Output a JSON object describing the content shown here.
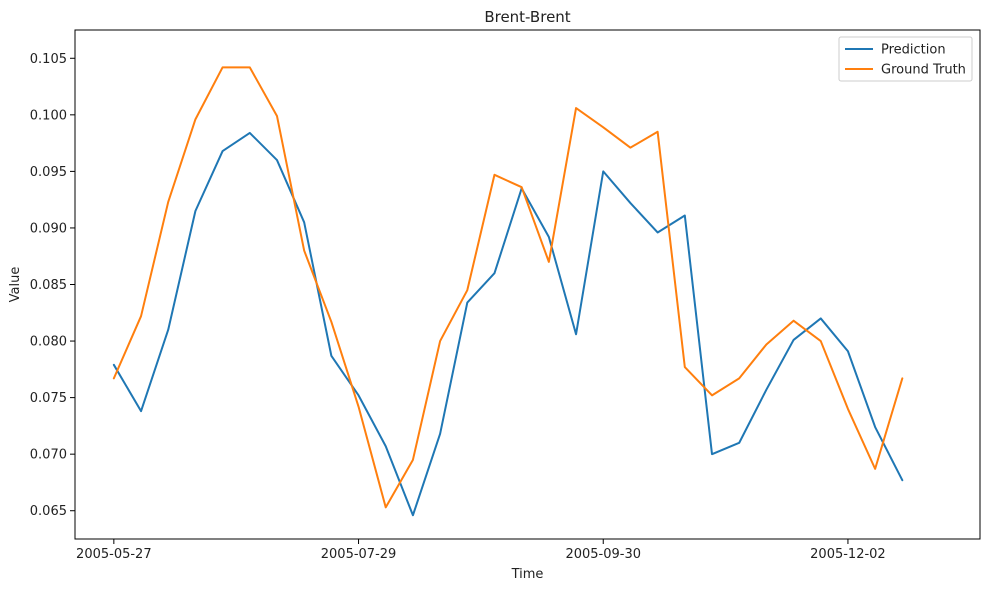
{
  "chart_data": {
    "type": "line",
    "title": "Brent-Brent",
    "xlabel": "Time",
    "ylabel": "Value",
    "x_tick_labels": [
      "2005-05-27",
      "2005-07-29",
      "2005-09-30",
      "2005-12-02"
    ],
    "x_ticks": [
      "2005-05-27",
      "2005-07-29",
      "2005-09-30",
      "2005-12-02"
    ],
    "y_ticks": [
      0.065,
      0.07,
      0.075,
      0.08,
      0.085,
      0.09,
      0.095,
      0.1,
      0.105
    ],
    "y_tick_labels": [
      "0.065",
      "0.070",
      "0.075",
      "0.080",
      "0.085",
      "0.090",
      "0.095",
      "0.100",
      "0.105"
    ],
    "xlim": [
      "2005-05-17",
      "2006-01-05"
    ],
    "ylim": [
      0.0625,
      0.1075
    ],
    "grid": false,
    "legend_position": "top-right",
    "x": [
      "2005-05-27",
      "2005-06-03",
      "2005-06-10",
      "2005-06-17",
      "2005-06-24",
      "2005-07-01",
      "2005-07-08",
      "2005-07-15",
      "2005-07-22",
      "2005-07-29",
      "2005-08-05",
      "2005-08-12",
      "2005-08-19",
      "2005-08-26",
      "2005-09-02",
      "2005-09-09",
      "2005-09-16",
      "2005-09-23",
      "2005-09-30",
      "2005-10-07",
      "2005-10-14",
      "2005-10-21",
      "2005-10-28",
      "2005-11-04",
      "2005-11-11",
      "2005-11-18",
      "2005-11-25",
      "2005-12-02",
      "2005-12-09",
      "2005-12-16"
    ],
    "series": [
      {
        "name": "Prediction",
        "color": "#1f77b4",
        "values": [
          0.0779,
          0.0738,
          0.081,
          0.0915,
          0.0968,
          0.0984,
          0.096,
          0.0905,
          0.0787,
          0.0752,
          0.0707,
          0.0646,
          0.0718,
          0.0834,
          0.086,
          0.0935,
          0.0892,
          0.0806,
          0.095,
          0.0922,
          0.0896,
          0.0911,
          0.07,
          0.071,
          0.0757,
          0.0801,
          0.082,
          0.0791,
          0.0724,
          0.0677
        ]
      },
      {
        "name": "Ground Truth",
        "color": "#ff7f0e",
        "values": [
          0.0767,
          0.0822,
          0.0923,
          0.0996,
          0.1042,
          0.1042,
          0.0999,
          0.088,
          0.0817,
          0.0742,
          0.0653,
          0.0695,
          0.08,
          0.0845,
          0.0947,
          0.0936,
          0.087,
          0.1006,
          0.0989,
          0.0971,
          0.0985,
          0.0777,
          0.0752,
          0.0767,
          0.0797,
          0.0818,
          0.08,
          0.074,
          0.0687,
          0.0767
        ]
      }
    ]
  }
}
